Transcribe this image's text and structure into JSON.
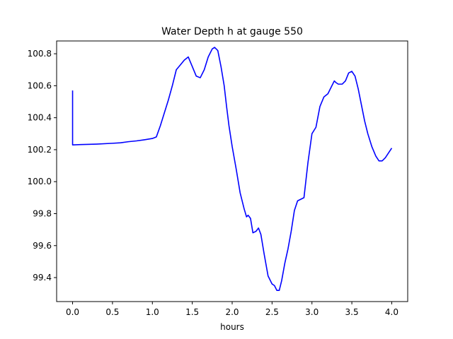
{
  "chart_data": {
    "type": "line",
    "title": "Water Depth h at gauge 550",
    "xlabel": "hours",
    "ylabel": "",
    "xlim": [
      -0.2,
      4.2
    ],
    "ylim": [
      99.25,
      100.88
    ],
    "xticks": [
      0.0,
      0.5,
      1.0,
      1.5,
      2.0,
      2.5,
      3.0,
      3.5,
      4.0
    ],
    "xtick_labels": [
      "0.0",
      "0.5",
      "1.0",
      "1.5",
      "2.0",
      "2.5",
      "3.0",
      "3.5",
      "4.0"
    ],
    "yticks": [
      99.4,
      99.6,
      99.8,
      100.0,
      100.2,
      100.4,
      100.6,
      100.8
    ],
    "ytick_labels": [
      "99.4",
      "99.6",
      "99.8",
      "100.0",
      "100.2",
      "100.4",
      "100.6",
      "100.8"
    ],
    "grid": false,
    "series": [
      {
        "color": "#0000ff",
        "x": [
          0.0,
          0.0,
          0.0,
          0.1,
          0.3,
          0.5,
          0.6,
          0.7,
          0.8,
          0.9,
          1.0,
          1.05,
          1.1,
          1.15,
          1.2,
          1.25,
          1.3,
          1.35,
          1.4,
          1.45,
          1.5,
          1.55,
          1.6,
          1.65,
          1.7,
          1.75,
          1.78,
          1.82,
          1.86,
          1.9,
          1.93,
          1.96,
          2.0,
          2.05,
          2.1,
          2.15,
          2.18,
          2.2,
          2.23,
          2.26,
          2.3,
          2.33,
          2.36,
          2.4,
          2.45,
          2.5,
          2.53,
          2.56,
          2.59,
          2.62,
          2.66,
          2.7,
          2.74,
          2.78,
          2.82,
          2.86,
          2.9,
          2.95,
          3.0,
          3.05,
          3.1,
          3.15,
          3.2,
          3.25,
          3.28,
          3.3,
          3.33,
          3.38,
          3.42,
          3.46,
          3.5,
          3.54,
          3.58,
          3.62,
          3.66,
          3.7,
          3.75,
          3.8,
          3.84,
          3.88,
          3.92,
          3.96,
          4.0
        ],
        "y": [
          100.57,
          100.4,
          100.23,
          100.232,
          100.235,
          100.24,
          100.243,
          100.25,
          100.255,
          100.262,
          100.27,
          100.28,
          100.35,
          100.43,
          100.51,
          100.6,
          100.7,
          100.73,
          100.76,
          100.78,
          100.72,
          100.66,
          100.65,
          100.7,
          100.78,
          100.83,
          100.84,
          100.82,
          100.72,
          100.6,
          100.47,
          100.35,
          100.22,
          100.08,
          99.93,
          99.83,
          99.78,
          99.79,
          99.77,
          99.68,
          99.69,
          99.71,
          99.67,
          99.55,
          99.41,
          99.36,
          99.35,
          99.32,
          99.32,
          99.38,
          99.49,
          99.58,
          99.69,
          99.82,
          99.88,
          99.89,
          99.9,
          100.12,
          100.3,
          100.34,
          100.47,
          100.53,
          100.55,
          100.6,
          100.63,
          100.62,
          100.61,
          100.61,
          100.63,
          100.68,
          100.69,
          100.66,
          100.58,
          100.48,
          100.38,
          100.3,
          100.22,
          100.16,
          100.13,
          100.13,
          100.15,
          100.18,
          100.21
        ]
      }
    ]
  }
}
